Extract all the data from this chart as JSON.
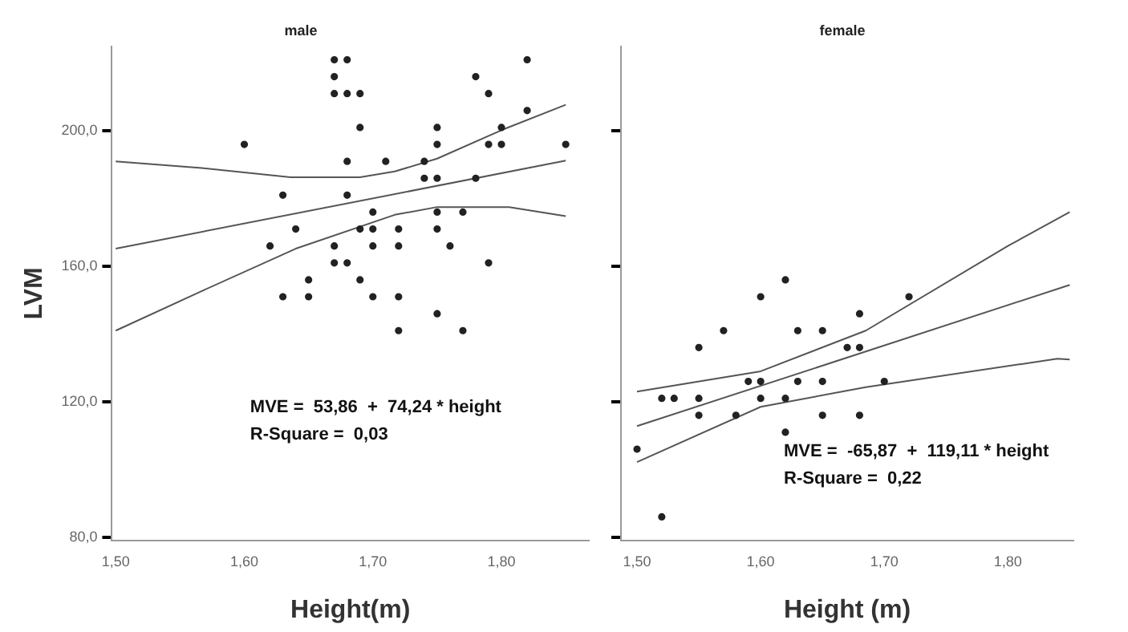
{
  "chart_data": [
    {
      "type": "scatter",
      "title": "male",
      "xlabel": "Height(m)",
      "ylabel": "LVM",
      "xlim": [
        1.497,
        1.868
      ],
      "ylim": [
        79,
        225
      ],
      "xticks": [
        {
          "value": 1.5,
          "label": "1,50"
        },
        {
          "value": 1.6,
          "label": "1,60"
        },
        {
          "value": 1.7,
          "label": "1,70"
        },
        {
          "value": 1.8,
          "label": "1,80"
        }
      ],
      "yticks": [
        {
          "value": 80,
          "label": "80,0"
        },
        {
          "value": 120,
          "label": "120,0"
        },
        {
          "value": 160,
          "label": "160,0"
        },
        {
          "value": 200,
          "label": "200,0"
        }
      ],
      "grid": false,
      "legend": false,
      "marker": "circle",
      "annotations": [
        "MVE =  53,86  +  74,24 * height",
        "R-Square =  0,03"
      ],
      "series": [
        {
          "color": "#222222",
          "x": [
            1.67,
            1.68,
            1.82,
            1.67,
            1.78,
            1.67,
            1.68,
            1.69,
            1.79,
            1.82,
            1.69,
            1.75,
            1.8,
            1.6,
            1.75,
            1.79,
            1.8,
            1.85,
            1.68,
            1.71,
            1.74,
            1.74,
            1.75,
            1.78,
            1.63,
            1.68,
            1.7,
            1.75,
            1.77,
            1.64,
            1.69,
            1.7,
            1.72,
            1.75,
            1.62,
            1.67,
            1.7,
            1.72,
            1.76,
            1.67,
            1.68,
            1.79,
            1.65,
            1.69,
            1.63,
            1.65,
            1.7,
            1.72,
            1.75,
            1.72,
            1.77
          ],
          "values": [
            221,
            221,
            221,
            216,
            216,
            211,
            211,
            211,
            211,
            206,
            201,
            201,
            201,
            196,
            196,
            196,
            196,
            196,
            191,
            191,
            191,
            186,
            186,
            186,
            181,
            181,
            176,
            176,
            176,
            171,
            171,
            171,
            171,
            171,
            166,
            166,
            166,
            166,
            166,
            161,
            161,
            161,
            156,
            156,
            151,
            151,
            151,
            151,
            146,
            141,
            141
          ]
        },
        {
          "type": "line",
          "marker": "none",
          "color": "#555555",
          "x": [
            1.5,
            1.85
          ],
          "values": [
            165.2,
            191.2
          ]
        },
        {
          "type": "line",
          "marker": "none",
          "color": "#555555",
          "x": [
            1.5,
            1.567,
            1.636,
            1.69,
            1.717,
            1.75,
            1.8,
            1.85
          ],
          "values": [
            191,
            189,
            186.3,
            186.3,
            188,
            191.8,
            200.2,
            207.7
          ]
        },
        {
          "type": "line",
          "marker": "none",
          "color": "#555555",
          "x": [
            1.5,
            1.567,
            1.64,
            1.717,
            1.75,
            1.806,
            1.85
          ],
          "values": [
            141,
            152.7,
            165.2,
            175.2,
            177.5,
            177.5,
            174.8
          ]
        }
      ]
    },
    {
      "type": "scatter",
      "title": "female",
      "xlabel": "Height (m)",
      "xlim": [
        1.487,
        1.853
      ],
      "ylim": [
        79,
        225
      ],
      "tick_labels": "x",
      "xticks": [
        {
          "value": 1.5,
          "label": "1,50"
        },
        {
          "value": 1.6,
          "label": "1,60"
        },
        {
          "value": 1.7,
          "label": "1,70"
        },
        {
          "value": 1.8,
          "label": "1,80"
        }
      ],
      "yticks": [
        {
          "value": 80,
          "label": null
        },
        {
          "value": 120,
          "label": null
        },
        {
          "value": 160,
          "label": null
        },
        {
          "value": 200,
          "label": null
        }
      ],
      "grid": false,
      "legend": false,
      "marker": "circle",
      "annotations": [
        "MVE =  -65,87  +  119,11 * height",
        "R-Square =  0,22"
      ],
      "series": [
        {
          "color": "#222222",
          "x": [
            1.5,
            1.52,
            1.53,
            1.52,
            1.55,
            1.55,
            1.55,
            1.57,
            1.58,
            1.59,
            1.6,
            1.6,
            1.6,
            1.62,
            1.62,
            1.62,
            1.63,
            1.63,
            1.65,
            1.65,
            1.65,
            1.67,
            1.68,
            1.68,
            1.68,
            1.7,
            1.72
          ],
          "values": [
            106,
            121,
            121,
            86,
            136,
            121,
            116,
            141,
            116,
            126,
            151,
            126,
            121,
            156,
            121,
            111,
            141,
            126,
            141,
            126,
            116,
            136,
            146,
            136,
            116,
            126,
            151
          ]
        },
        {
          "type": "line",
          "marker": "none",
          "color": "#555555",
          "x": [
            1.5,
            1.85
          ],
          "values": [
            112.8,
            154.5
          ]
        },
        {
          "type": "line",
          "marker": "none",
          "color": "#555555",
          "x": [
            1.5,
            1.6,
            1.685,
            1.8,
            1.85
          ],
          "values": [
            123,
            129,
            141,
            166,
            176
          ]
        },
        {
          "type": "line",
          "marker": "none",
          "color": "#555555",
          "x": [
            1.5,
            1.6,
            1.685,
            1.84,
            1.85
          ],
          "values": [
            102.2,
            118.5,
            124.3,
            132.7,
            132.5
          ]
        }
      ]
    }
  ]
}
